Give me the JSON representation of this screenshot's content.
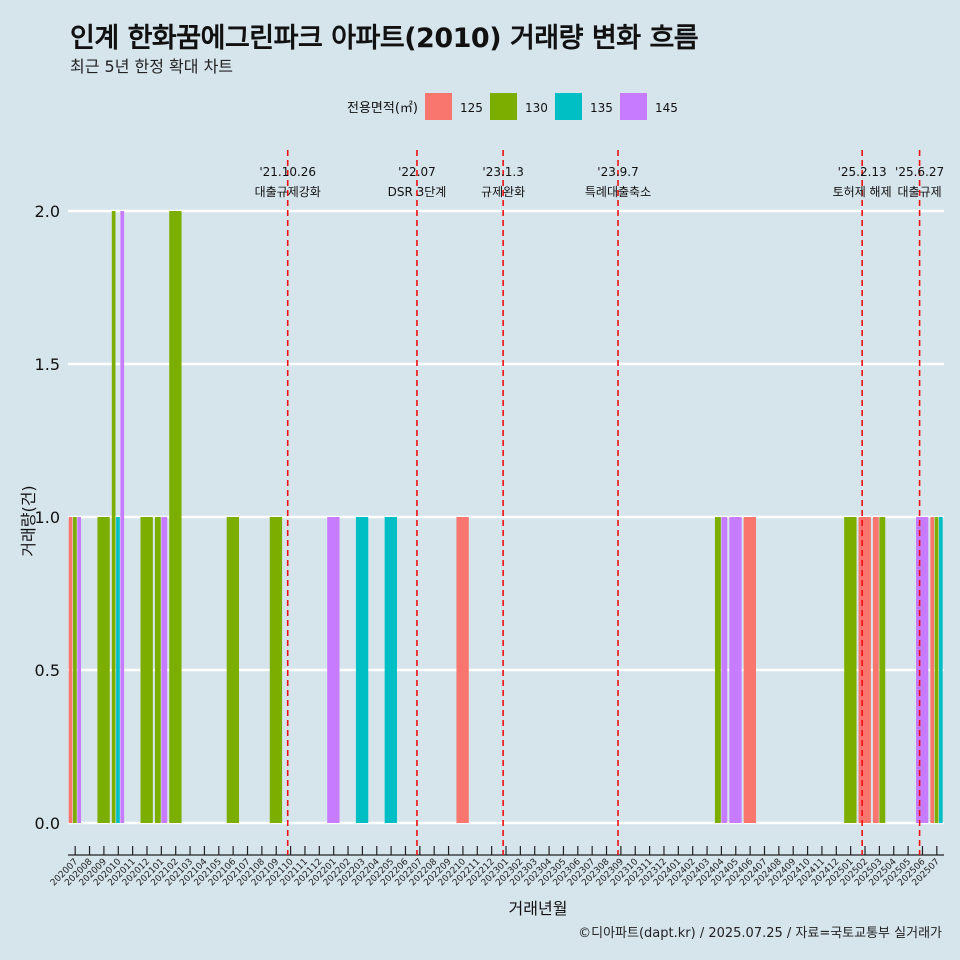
{
  "header": {
    "title": "인계 한화꿈에그린파크 아파트(2010) 거래량 변화 흐름",
    "subtitle": "최근 5년 한정 확대 차트"
  },
  "caption": "©디아파트(dapt.kr) / 2025.07.25 / 자료=국토교통부 실거래가",
  "colors": {
    "125": "#f8766d",
    "130": "#7cae00",
    "135": "#00bfc4",
    "145": "#c77cff",
    "background": "#d6e4ec",
    "event_line": "#ee1111"
  },
  "chart_data": {
    "type": "bar",
    "title": "인계 한화꿈에그린파크 아파트(2010) 거래량 변화 흐름",
    "xlabel": "거래년월",
    "ylabel": "거래량(건)",
    "ylim": [
      0,
      2
    ],
    "yticks": [
      0.0,
      0.5,
      1.0,
      1.5,
      2.0
    ],
    "ytick_labels": [
      "0.0",
      "0.5",
      "1.0",
      "1.5",
      "2.0"
    ],
    "legend_title": "전용면적(㎡)",
    "legend_position": "top",
    "legend": [
      "125",
      "130",
      "135",
      "145"
    ],
    "categories": [
      "202007",
      "202008",
      "202009",
      "202010",
      "202011",
      "202012",
      "202101",
      "202102",
      "202103",
      "202104",
      "202105",
      "202106",
      "202107",
      "202108",
      "202109",
      "202110",
      "202111",
      "202112",
      "202201",
      "202202",
      "202203",
      "202204",
      "202205",
      "202206",
      "202207",
      "202208",
      "202209",
      "202210",
      "202211",
      "202212",
      "202301",
      "202302",
      "202303",
      "202304",
      "202305",
      "202306",
      "202307",
      "202308",
      "202309",
      "202310",
      "202311",
      "202312",
      "202401",
      "202402",
      "202403",
      "202404",
      "202405",
      "202406",
      "202407",
      "202408",
      "202409",
      "202410",
      "202411",
      "202412",
      "202501",
      "202502",
      "202503",
      "202504",
      "202505",
      "202506",
      "202507"
    ],
    "bars": [
      {
        "month": "202007",
        "segments": [
          {
            "area": "125",
            "value": 1
          },
          {
            "area": "130",
            "value": 1
          },
          {
            "area": "145",
            "value": 1
          }
        ]
      },
      {
        "month": "202009",
        "segments": [
          {
            "area": "130",
            "value": 1
          }
        ]
      },
      {
        "month": "202010",
        "segments": [
          {
            "area": "130",
            "value": 2
          },
          {
            "area": "135",
            "value": 1
          },
          {
            "area": "145",
            "value": 2
          }
        ]
      },
      {
        "month": "202012",
        "segments": [
          {
            "area": "130",
            "value": 1
          }
        ]
      },
      {
        "month": "202101",
        "segments": [
          {
            "area": "130",
            "value": 1
          },
          {
            "area": "145",
            "value": 1
          }
        ]
      },
      {
        "month": "202102",
        "segments": [
          {
            "area": "130",
            "value": 2
          }
        ]
      },
      {
        "month": "202106",
        "segments": [
          {
            "area": "130",
            "value": 1
          }
        ]
      },
      {
        "month": "202109",
        "segments": [
          {
            "area": "130",
            "value": 1
          }
        ]
      },
      {
        "month": "202201",
        "segments": [
          {
            "area": "145",
            "value": 1
          }
        ]
      },
      {
        "month": "202203",
        "segments": [
          {
            "area": "135",
            "value": 1
          }
        ]
      },
      {
        "month": "202205",
        "segments": [
          {
            "area": "135",
            "value": 1
          }
        ]
      },
      {
        "month": "202210",
        "segments": [
          {
            "area": "125",
            "value": 1
          }
        ]
      },
      {
        "month": "202404",
        "segments": [
          {
            "area": "130",
            "value": 1
          },
          {
            "area": "145",
            "value": 1
          }
        ]
      },
      {
        "month": "202405",
        "segments": [
          {
            "area": "145",
            "value": 1
          }
        ]
      },
      {
        "month": "202406",
        "segments": [
          {
            "area": "125",
            "value": 1
          }
        ]
      },
      {
        "month": "202501",
        "segments": [
          {
            "area": "130",
            "value": 1
          }
        ]
      },
      {
        "month": "202502",
        "segments": [
          {
            "area": "125",
            "value": 1
          }
        ]
      },
      {
        "month": "202503",
        "segments": [
          {
            "area": "125",
            "value": 1
          },
          {
            "area": "130",
            "value": 1
          }
        ]
      },
      {
        "month": "202506",
        "segments": [
          {
            "area": "145",
            "value": 1
          }
        ]
      },
      {
        "month": "202507",
        "segments": [
          {
            "area": "125",
            "value": 1
          },
          {
            "area": "130",
            "value": 1
          },
          {
            "area": "135",
            "value": 1
          }
        ]
      }
    ],
    "events": [
      {
        "position": 15.3,
        "date": "'21.10.26",
        "label": "대출규제강화"
      },
      {
        "position": 24.3,
        "date": "'22.07",
        "label": "DSR 3단계"
      },
      {
        "position": 30.3,
        "date": "'23.1.3",
        "label": "규제완화"
      },
      {
        "position": 38.3,
        "date": "'23.9.7",
        "label": "특례대출축소"
      },
      {
        "position": 55.3,
        "date": "'25.2.13",
        "label": "토허제 해제"
      },
      {
        "position": 59.3,
        "date": "'25.6.27",
        "label": "대출규제"
      }
    ]
  }
}
